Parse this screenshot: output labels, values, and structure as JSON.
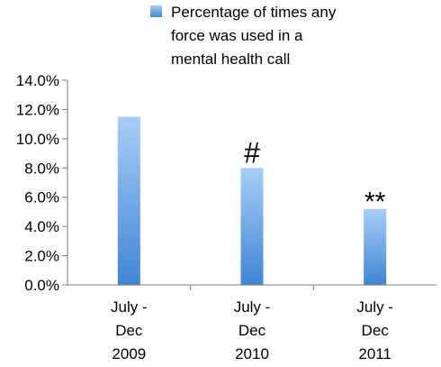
{
  "chart_data": {
    "type": "bar",
    "categories": [
      [
        "July -",
        "Dec",
        "2009"
      ],
      [
        "July -",
        "Dec",
        "2010"
      ],
      [
        "July -",
        "Dec",
        "2011"
      ]
    ],
    "series": [
      {
        "name": "Percentage of times any force was used in a mental health call",
        "name_lines": [
          "Percentage of times any",
          "force was used in a",
          "mental health call"
        ],
        "values": [
          11.5,
          8.0,
          5.2
        ],
        "color_top": "#a8cdf7",
        "color_bottom": "#3f86d6"
      }
    ],
    "annotations": [
      "",
      "#",
      "**"
    ],
    "ylim": [
      0,
      14
    ],
    "ytick_step": 2,
    "ytick_labels": [
      "0.0%",
      "2.0%",
      "4.0%",
      "6.0%",
      "8.0%",
      "10.0%",
      "12.0%",
      "14.0%"
    ],
    "grid": false,
    "legend_position": "top-right",
    "title": "",
    "xlabel": "",
    "ylabel": ""
  }
}
